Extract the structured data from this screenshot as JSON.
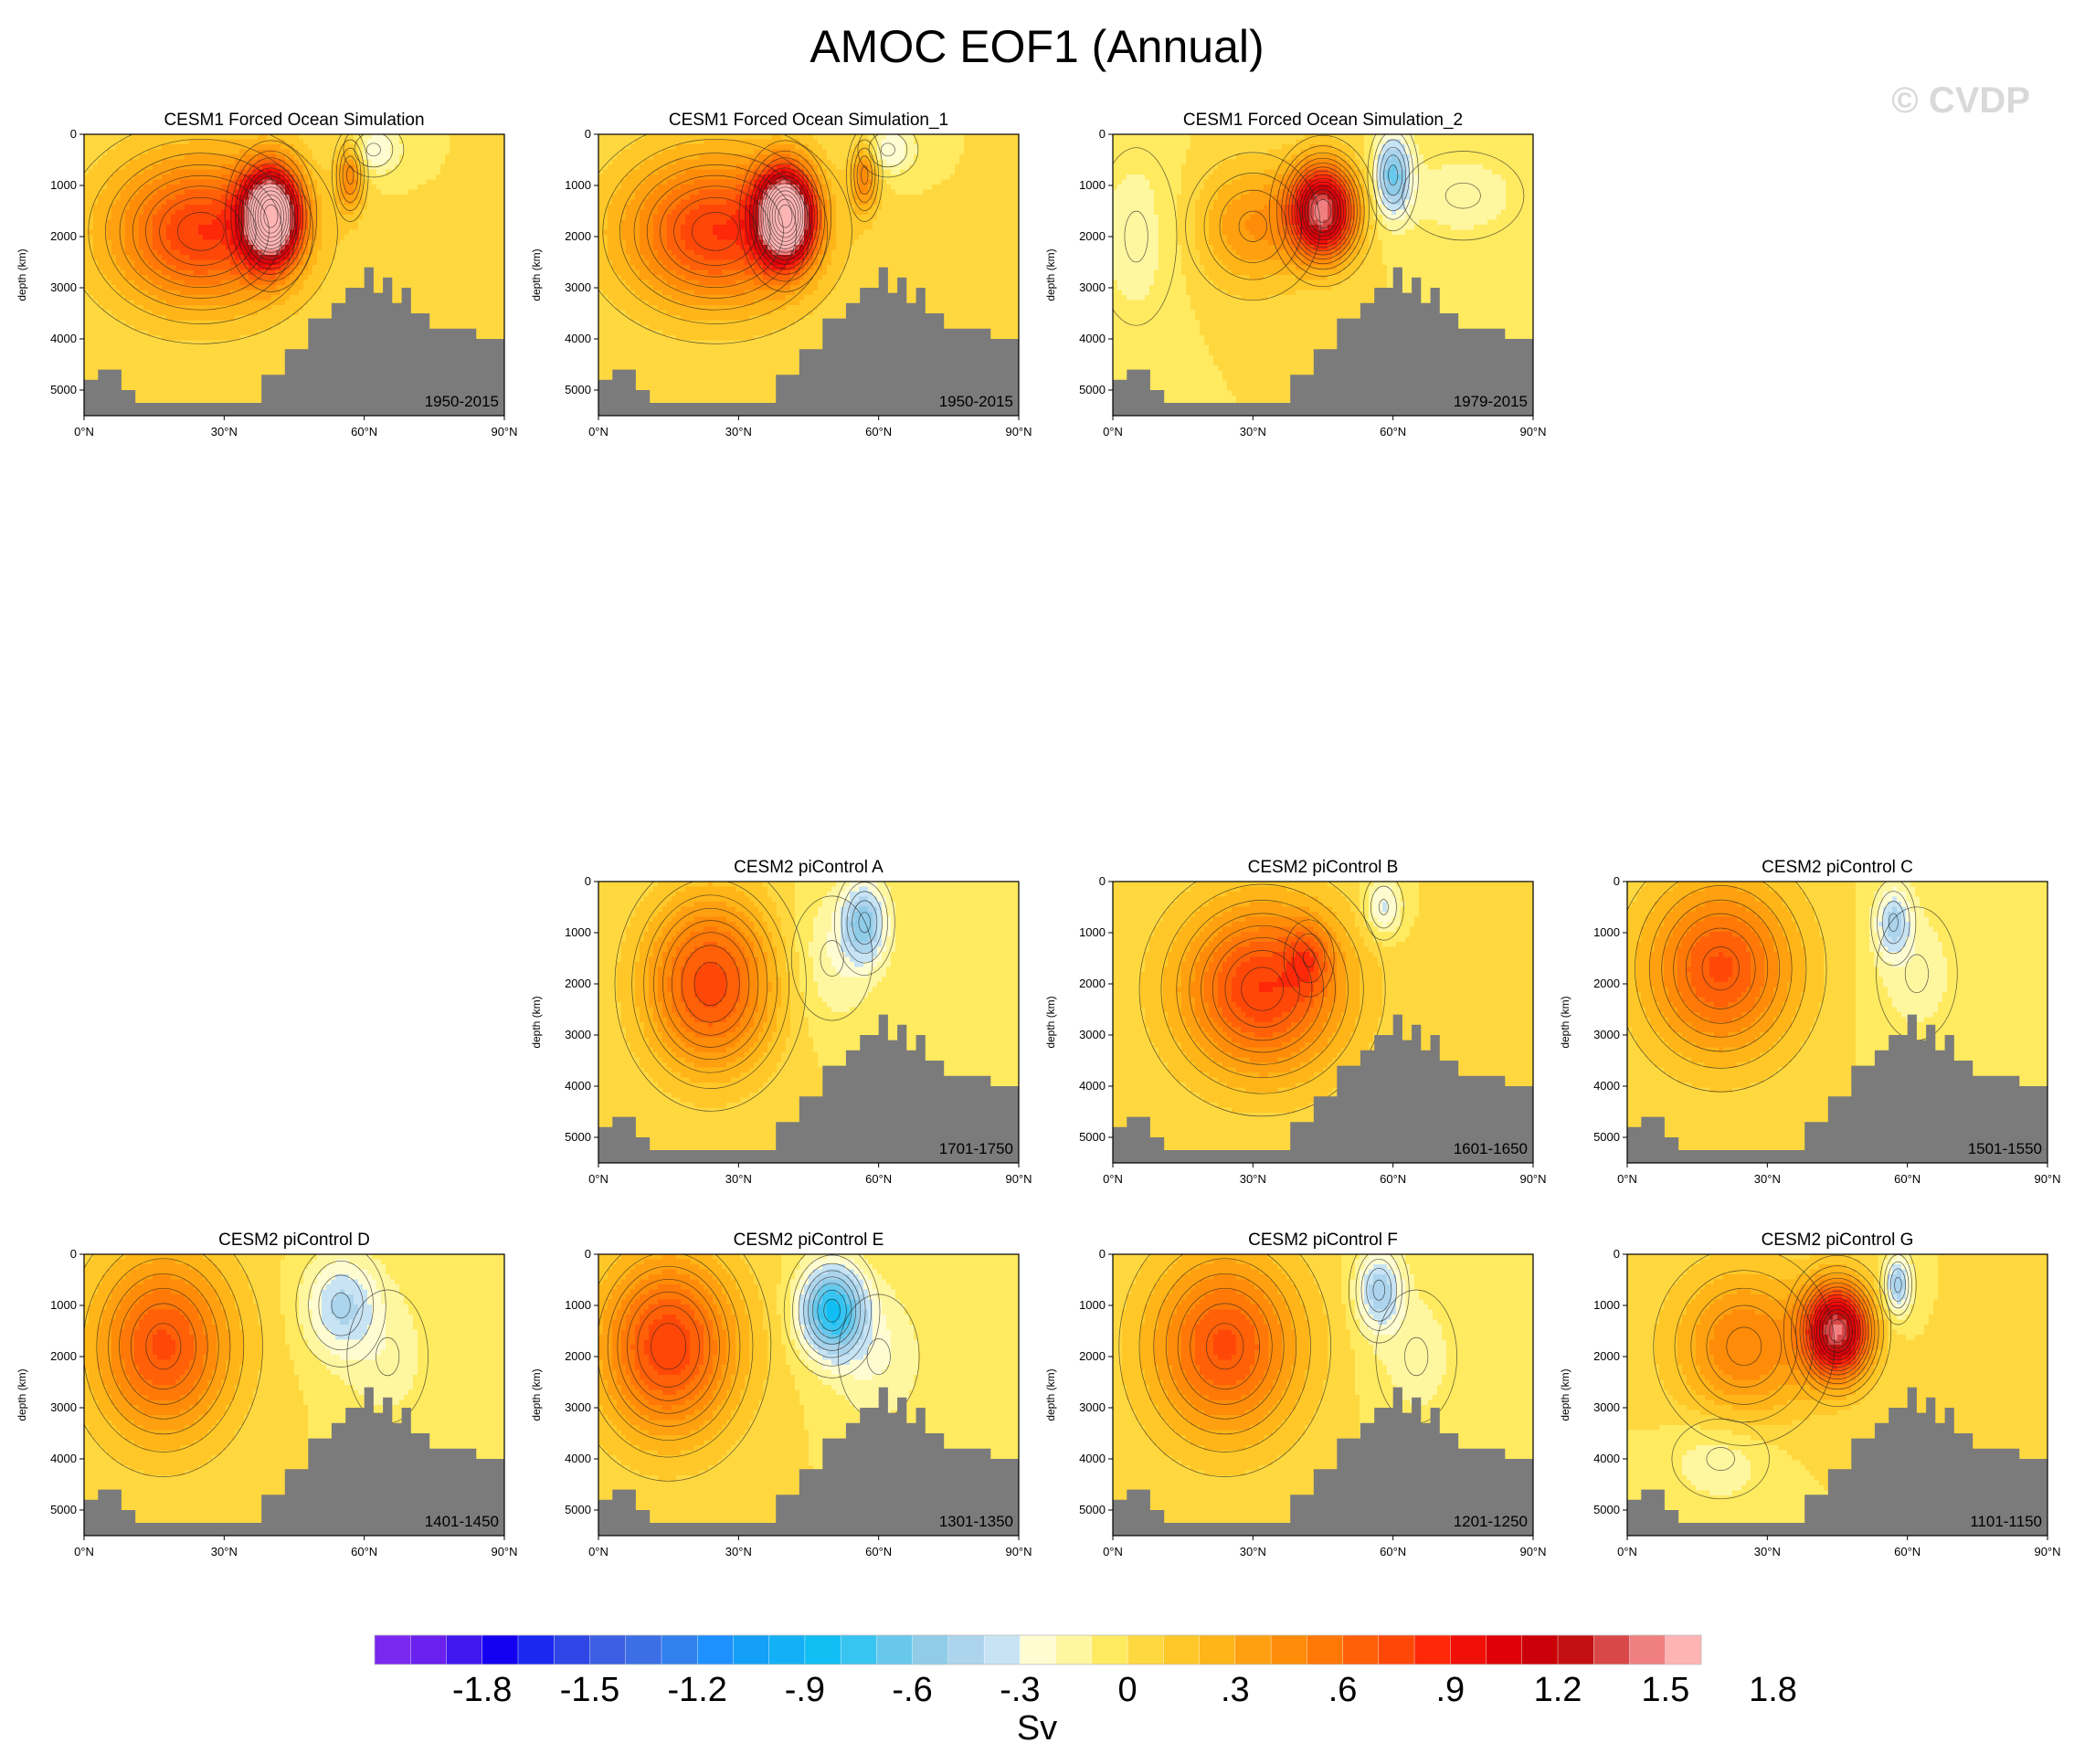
{
  "title": "AMOC EOF1 (Annual)",
  "watermark": "© CVDP",
  "chart_data": {
    "type": "heatmap",
    "xlabel": "",
    "ylabel": "depth (km)",
    "x_ticks": [
      "0°N",
      "30°N",
      "60°N",
      "90°N"
    ],
    "y_ticks": [
      "0",
      "1000",
      "2000",
      "3000",
      "4000",
      "5000"
    ],
    "xlim": [
      0,
      90
    ],
    "ylim": [
      5500,
      0
    ],
    "panels": [
      {
        "title": "CESM1 Forced Ocean Simulation",
        "years": "1950-2015",
        "row": 0,
        "col": 0,
        "centers": [
          {
            "lat": 40,
            "depth": 1600,
            "amp": 1.9,
            "wl": 6,
            "wd": 900
          },
          {
            "lat": 25,
            "depth": 1900,
            "amp": 0.8,
            "wl": 20,
            "wd": 1500
          },
          {
            "lat": 57,
            "depth": 800,
            "amp": 0.5,
            "wl": 3,
            "wd": 700
          },
          {
            "lat": 62,
            "depth": 300,
            "amp": -0.3,
            "wl": 6,
            "wd": 500
          }
        ]
      },
      {
        "title": "CESM1 Forced Ocean Simulation_1",
        "years": "1950-2015",
        "row": 0,
        "col": 1,
        "centers": [
          {
            "lat": 40,
            "depth": 1600,
            "amp": 1.9,
            "wl": 6,
            "wd": 900
          },
          {
            "lat": 25,
            "depth": 1900,
            "amp": 0.8,
            "wl": 20,
            "wd": 1500
          },
          {
            "lat": 57,
            "depth": 800,
            "amp": 0.5,
            "wl": 3,
            "wd": 700
          },
          {
            "lat": 62,
            "depth": 300,
            "amp": -0.3,
            "wl": 6,
            "wd": 500
          }
        ]
      },
      {
        "title": "CESM1 Forced Ocean Simulation_2",
        "years": "1979-2015",
        "row": 0,
        "col": 2,
        "centers": [
          {
            "lat": 45,
            "depth": 1500,
            "amp": 1.4,
            "wl": 7,
            "wd": 900
          },
          {
            "lat": 30,
            "depth": 1800,
            "amp": 0.4,
            "wl": 12,
            "wd": 1200
          },
          {
            "lat": 60,
            "depth": 800,
            "amp": -0.6,
            "wl": 4,
            "wd": 800
          },
          {
            "lat": 5,
            "depth": 2000,
            "amp": -0.15,
            "wl": 10,
            "wd": 2000
          },
          {
            "lat": 75,
            "depth": 1200,
            "amp": -0.15,
            "wl": 15,
            "wd": 1000
          }
        ]
      },
      {
        "title": "CESM2 piControl A",
        "years": "1701-1750",
        "row": 1,
        "col": 1,
        "centers": [
          {
            "lat": 24,
            "depth": 2000,
            "amp": 0.75,
            "wl": 14,
            "wd": 1700
          },
          {
            "lat": 57,
            "depth": 800,
            "amp": -0.5,
            "wl": 5,
            "wd": 800
          },
          {
            "lat": 50,
            "depth": 1500,
            "amp": -0.2,
            "wl": 10,
            "wd": 1400
          }
        ]
      },
      {
        "title": "CESM2 piControl B",
        "years": "1601-1650",
        "row": 1,
        "col": 2,
        "centers": [
          {
            "lat": 32,
            "depth": 2100,
            "amp": 0.8,
            "wl": 18,
            "wd": 1700
          },
          {
            "lat": 42,
            "depth": 1500,
            "amp": 0.3,
            "wl": 5,
            "wd": 700
          },
          {
            "lat": 58,
            "depth": 500,
            "amp": -0.35,
            "wl": 4,
            "wd": 600
          }
        ]
      },
      {
        "title": "CESM2 piControl C",
        "years": "1501-1550",
        "row": 1,
        "col": 3,
        "centers": [
          {
            "lat": 20,
            "depth": 1700,
            "amp": 0.72,
            "wl": 16,
            "wd": 1700
          },
          {
            "lat": 57,
            "depth": 800,
            "amp": -0.4,
            "wl": 4,
            "wd": 700
          },
          {
            "lat": 62,
            "depth": 1800,
            "amp": -0.15,
            "wl": 10,
            "wd": 1500
          }
        ]
      },
      {
        "title": "CESM2 piControl D",
        "years": "1401-1450",
        "row": 2,
        "col": 0,
        "centers": [
          {
            "lat": 17,
            "depth": 1800,
            "amp": 0.72,
            "wl": 15,
            "wd": 1800
          },
          {
            "lat": 55,
            "depth": 1000,
            "amp": -0.4,
            "wl": 8,
            "wd": 1000
          },
          {
            "lat": 65,
            "depth": 2000,
            "amp": -0.15,
            "wl": 10,
            "wd": 1500
          }
        ]
      },
      {
        "title": "CESM2 piControl E",
        "years": "1301-1350",
        "row": 2,
        "col": 1,
        "centers": [
          {
            "lat": 15,
            "depth": 1800,
            "amp": 0.78,
            "wl": 15,
            "wd": 1800
          },
          {
            "lat": 50,
            "depth": 1100,
            "amp": -0.8,
            "wl": 7,
            "wd": 900
          },
          {
            "lat": 60,
            "depth": 2000,
            "amp": -0.2,
            "wl": 10,
            "wd": 1400
          }
        ]
      },
      {
        "title": "CESM2 piControl F",
        "years": "1201-1250",
        "row": 2,
        "col": 2,
        "centers": [
          {
            "lat": 24,
            "depth": 1800,
            "amp": 0.72,
            "wl": 16,
            "wd": 1800
          },
          {
            "lat": 57,
            "depth": 700,
            "amp": -0.45,
            "wl": 5,
            "wd": 800
          },
          {
            "lat": 65,
            "depth": 2000,
            "amp": -0.15,
            "wl": 10,
            "wd": 1500
          }
        ]
      },
      {
        "title": "CESM2 piControl G",
        "years": "1101-1150",
        "row": 2,
        "col": 3,
        "centers": [
          {
            "lat": 45,
            "depth": 1500,
            "amp": 1.35,
            "wl": 7,
            "wd": 900
          },
          {
            "lat": 25,
            "depth": 1800,
            "amp": 0.5,
            "wl": 15,
            "wd": 1500
          },
          {
            "lat": 58,
            "depth": 600,
            "amp": -0.5,
            "wl": 3,
            "wd": 600
          },
          {
            "lat": 20,
            "depth": 4000,
            "amp": -0.2,
            "wl": 12,
            "wd": 900
          }
        ]
      }
    ],
    "colorbar": {
      "label": "Sv",
      "tick_labels": [
        "-1.8",
        "-1.5",
        "-1.2",
        "-.9",
        "-.6",
        "-.3",
        "0",
        ".3",
        ".6",
        ".9",
        "1.2",
        "1.5",
        "1.8"
      ],
      "tick_values": [
        -1.8,
        -1.5,
        -1.2,
        -0.9,
        -0.6,
        -0.3,
        0,
        0.3,
        0.6,
        0.9,
        1.2,
        1.5,
        1.8
      ],
      "levels_min": -2.1,
      "level_step": 0.1,
      "colors": [
        "#7a28f0",
        "#6a20ee",
        "#4018ee",
        "#1400f0",
        "#1a28f0",
        "#2e46e6",
        "#3c5ee2",
        "#3c6ee6",
        "#3280ee",
        "#1e90ff",
        "#14a0f8",
        "#14b0f6",
        "#10bef4",
        "#38c4f0",
        "#68c8ec",
        "#90cce8",
        "#acd4ec",
        "#c8e4f4",
        "#fffcd2",
        "#fff6a0",
        "#ffea60",
        "#ffd840",
        "#ffc828",
        "#ffb418",
        "#ffa010",
        "#ff8c08",
        "#ff7808",
        "#ff6008",
        "#ff4808",
        "#ff2808",
        "#f01008",
        "#e00008",
        "#cc0008",
        "#c41010",
        "#d84848",
        "#f08080",
        "#ffb4b4"
      ]
    }
  }
}
